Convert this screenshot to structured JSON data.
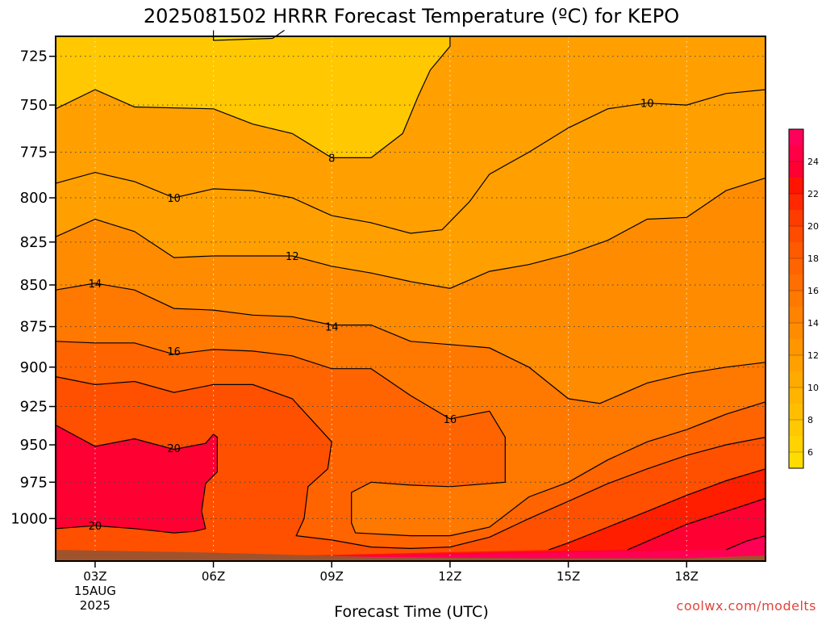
{
  "chart_data": {
    "type": "heatmap",
    "title": "2025081502 HRRR Forecast Temperature (ºC) for KEPO",
    "xlabel": "Forecast Time (UTC)",
    "credit": "coolwx.com/modelts",
    "x_ticks": [
      "03Z",
      "06Z",
      "09Z",
      "12Z",
      "15Z",
      "18Z"
    ],
    "x_date_lines": [
      "15AUG",
      "2025"
    ],
    "xlim_hours": [
      2,
      20
    ],
    "y_ticks": [
      725,
      750,
      775,
      800,
      825,
      850,
      875,
      900,
      925,
      950,
      975,
      1000
    ],
    "ylim_hpa": [
      1030,
      715
    ],
    "y_scale": "log-pressure",
    "grid": "dotted",
    "colorbar": {
      "levels": [
        6,
        8,
        10,
        12,
        14,
        16,
        18,
        20,
        22,
        24
      ],
      "range": [
        5,
        26
      ],
      "colors": [
        "#ffdc00",
        "#ffc800",
        "#ffb400",
        "#ffa000",
        "#ff8c00",
        "#ff7800",
        "#ff6400",
        "#ff5000",
        "#ff3c00",
        "#ff1e00",
        "#ff0032",
        "#ff0055",
        "#ff0078"
      ]
    },
    "isotherms": [
      {
        "label": "8",
        "label_at": {
          "hour": 9.0,
          "hpa": 778
        },
        "points": [
          [
            6,
            712
          ],
          [
            6,
            717
          ],
          [
            7.5,
            716
          ],
          [
            7.8,
            712
          ]
        ]
      },
      {
        "label": "8",
        "label_at": {
          "hour": 9.0,
          "hpa": 778
        },
        "points": [
          [
            2,
            752
          ],
          [
            3,
            742
          ],
          [
            4,
            751
          ],
          [
            6,
            752
          ],
          [
            7,
            760
          ],
          [
            8,
            765
          ],
          [
            9,
            778
          ],
          [
            10,
            778
          ],
          [
            10.8,
            765
          ],
          [
            11.2,
            745
          ],
          [
            11.5,
            732
          ],
          [
            12,
            720
          ],
          [
            12,
            715
          ]
        ]
      },
      {
        "label": "10",
        "label_at": {
          "hour": 5.0,
          "hpa": 800
        },
        "points": [
          [
            2,
            792
          ],
          [
            3,
            786
          ],
          [
            4,
            791
          ],
          [
            5,
            800
          ],
          [
            6,
            795
          ],
          [
            7,
            796
          ],
          [
            8,
            800
          ],
          [
            9,
            810
          ],
          [
            10,
            814
          ],
          [
            11,
            820
          ],
          [
            11.8,
            818
          ],
          [
            12.5,
            802
          ],
          [
            13,
            787
          ],
          [
            14,
            775
          ],
          [
            15,
            762
          ],
          [
            16,
            752
          ],
          [
            17,
            749
          ],
          [
            18,
            750
          ],
          [
            19,
            744
          ],
          [
            20,
            742
          ]
        ]
      },
      {
        "label": "12",
        "label_at": {
          "hour": 8.0,
          "hpa": 832
        },
        "points": [
          [
            2,
            822
          ],
          [
            3,
            812
          ],
          [
            4,
            819
          ],
          [
            5,
            834
          ],
          [
            6,
            833
          ],
          [
            7,
            833
          ],
          [
            8,
            833
          ],
          [
            9,
            839
          ],
          [
            10,
            843
          ],
          [
            11,
            848
          ],
          [
            12,
            852
          ],
          [
            13,
            842
          ],
          [
            14,
            838
          ],
          [
            15,
            832
          ],
          [
            16,
            824
          ],
          [
            17,
            812
          ],
          [
            18,
            811
          ],
          [
            19,
            796
          ],
          [
            20,
            789
          ]
        ]
      },
      {
        "label": "14",
        "label_at": {
          "hour": 3.0,
          "hpa": 848
        },
        "points": [
          [
            2,
            853
          ],
          [
            3,
            849
          ],
          [
            4,
            853
          ],
          [
            5,
            864
          ],
          [
            6,
            865
          ],
          [
            7,
            868
          ],
          [
            8,
            869
          ],
          [
            9,
            874
          ],
          [
            10,
            874
          ],
          [
            11,
            884
          ],
          [
            12,
            886
          ],
          [
            13,
            888
          ],
          [
            14,
            900
          ],
          [
            15,
            920
          ],
          [
            15.8,
            923
          ],
          [
            17,
            910
          ],
          [
            18,
            904
          ],
          [
            19,
            900
          ],
          [
            20,
            897
          ]
        ]
      },
      {
        "label": "16",
        "label_at": {
          "hour": 5.0,
          "hpa": 892
        },
        "points": [
          [
            2,
            884
          ],
          [
            3,
            885
          ],
          [
            4,
            885
          ],
          [
            5,
            892
          ],
          [
            6,
            889
          ],
          [
            7,
            890
          ],
          [
            8,
            893
          ],
          [
            9,
            901
          ],
          [
            10,
            901
          ],
          [
            11,
            918
          ],
          [
            12,
            933
          ],
          [
            13,
            928
          ],
          [
            13.4,
            945
          ],
          [
            13.4,
            975
          ],
          [
            12,
            978
          ],
          [
            11,
            977
          ],
          [
            10,
            975
          ],
          [
            9.5,
            982
          ],
          [
            9.5,
            1003
          ],
          [
            9.6,
            1010
          ],
          [
            11,
            1012
          ],
          [
            12,
            1012
          ],
          [
            13,
            1006
          ],
          [
            14,
            985
          ],
          [
            15,
            975
          ],
          [
            16,
            960
          ],
          [
            17,
            948
          ],
          [
            18,
            940
          ],
          [
            19,
            930
          ],
          [
            20,
            922
          ]
        ]
      },
      {
        "label": "18",
        "label_at": {
          "hour": 9.0,
          "hpa": 936
        },
        "points": [
          [
            2,
            906
          ],
          [
            3,
            911
          ],
          [
            4,
            909
          ],
          [
            5,
            916
          ],
          [
            6,
            911
          ],
          [
            7,
            911
          ],
          [
            8,
            920
          ],
          [
            9,
            948
          ],
          [
            8.9,
            966
          ],
          [
            8.4,
            978
          ],
          [
            8.3,
            1000
          ],
          [
            8.1,
            1012
          ],
          [
            9,
            1015
          ],
          [
            10,
            1020
          ],
          [
            11,
            1021
          ],
          [
            12,
            1020
          ],
          [
            13,
            1013
          ],
          [
            14,
            1000
          ],
          [
            15,
            988
          ],
          [
            16,
            976
          ],
          [
            17,
            966
          ],
          [
            18,
            957
          ],
          [
            19,
            950
          ],
          [
            20,
            945
          ]
        ]
      },
      {
        "label": "20",
        "label_at": {
          "hour": 5.0,
          "hpa": 953
        },
        "points": [
          [
            2,
            937
          ],
          [
            3,
            951
          ],
          [
            4,
            946
          ],
          [
            5,
            953
          ],
          [
            5.8,
            949
          ],
          [
            6,
            943
          ],
          [
            6.1,
            945
          ],
          [
            6.1,
            968
          ],
          [
            5.8,
            976
          ],
          [
            5.7,
            995
          ],
          [
            5.8,
            1007
          ],
          [
            5.5,
            1009
          ],
          [
            5,
            1010
          ],
          [
            4,
            1007
          ],
          [
            3,
            1005
          ],
          [
            2,
            1007
          ]
        ]
      },
      {
        "label": "20",
        "label_at": {
          "hour": 3.0,
          "hpa": 1008
        },
        "points": [
          [
            14.5,
            1022
          ],
          [
            15,
            1017
          ],
          [
            16,
            1006
          ],
          [
            17,
            995
          ],
          [
            18,
            984
          ],
          [
            19,
            974
          ],
          [
            20,
            966
          ]
        ]
      },
      {
        "label": "22",
        "label_at": {
          "hour": 18.0,
          "hpa": 1010
        },
        "points": [
          [
            16.5,
            1022
          ],
          [
            17,
            1016
          ],
          [
            18,
            1004
          ],
          [
            19,
            995
          ],
          [
            20,
            986
          ]
        ]
      },
      {
        "label": "24",
        "label_at": {
          "hour": 19.0,
          "hpa": 1020
        },
        "points": [
          [
            19,
            1022
          ],
          [
            19.5,
            1016
          ],
          [
            20,
            1012
          ]
        ]
      }
    ],
    "isotherm_labels": [
      {
        "text": "8",
        "hour": 9.0,
        "hpa": 778
      },
      {
        "text": "10",
        "hour": 5.0,
        "hpa": 800
      },
      {
        "text": "10",
        "hour": 17.0,
        "hpa": 749
      },
      {
        "text": "12",
        "hour": 8.0,
        "hpa": 833
      },
      {
        "text": "14",
        "hour": 3.0,
        "hpa": 849
      },
      {
        "text": "14",
        "hour": 9.0,
        "hpa": 875
      },
      {
        "text": "16",
        "hour": 5.0,
        "hpa": 890
      },
      {
        "text": "16",
        "hour": 12.0,
        "hpa": 933
      },
      {
        "text": "20",
        "hour": 5.0,
        "hpa": 952
      },
      {
        "text": "20",
        "hour": 3.0,
        "hpa": 1005
      }
    ],
    "ground": {
      "color": "#a0522d",
      "surface_hpa": [
        [
          2,
          1022
        ],
        [
          6,
          1024
        ],
        [
          10,
          1027
        ],
        [
          14,
          1028
        ],
        [
          18,
          1028
        ],
        [
          20,
          1026
        ]
      ]
    }
  }
}
